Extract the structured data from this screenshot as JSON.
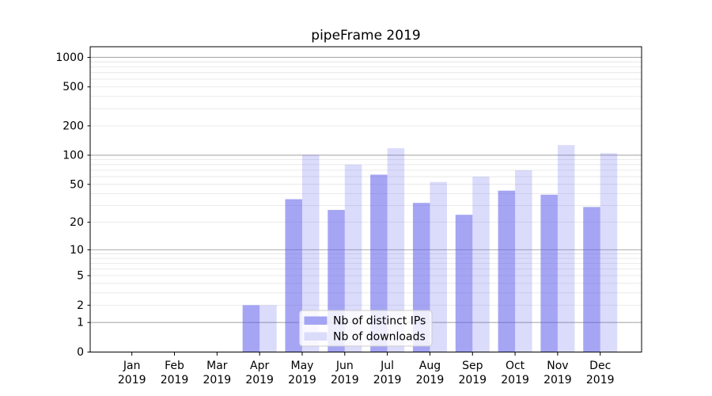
{
  "chart_data": {
    "type": "bar",
    "title": "pipeFrame 2019",
    "x_axis": {
      "months": [
        "Jan",
        "Feb",
        "Mar",
        "Apr",
        "May",
        "Jun",
        "Jul",
        "Aug",
        "Sep",
        "Oct",
        "Nov",
        "Dec"
      ],
      "year": "2019"
    },
    "y_axis": {
      "scale": "log1p",
      "tick_values": [
        0,
        1,
        2,
        5,
        10,
        20,
        50,
        100,
        200,
        500,
        1000
      ],
      "tick_labels": [
        "0",
        "1",
        "2",
        "5",
        "10",
        "20",
        "50",
        "100",
        "200",
        "500",
        "1000"
      ],
      "ylim": [
        0,
        1300
      ],
      "major_gridline_values": [
        1,
        10,
        100,
        1000
      ],
      "minor_gridline_decades": [
        1,
        10,
        100
      ],
      "grid": "on"
    },
    "series": [
      {
        "name": "Nb of distinct IPs",
        "values": [
          0,
          0,
          0,
          2,
          35,
          27,
          63,
          32,
          24,
          43,
          39,
          29
        ],
        "fill": "rgba(91,91,235,0.55)",
        "legend_color": "#a4a4f5"
      },
      {
        "name": "Nb of downloads",
        "values": [
          0,
          0,
          0,
          2,
          101,
          80,
          118,
          53,
          60,
          70,
          127,
          105
        ],
        "fill": "rgba(91,91,235,0.22)",
        "legend_color": "#dbdbfb"
      }
    ],
    "legend": {
      "position": "lower center inside plot",
      "labels": [
        "Nb of distinct IPs",
        "Nb of downloads"
      ]
    },
    "colors": {
      "background": "#ffffff",
      "spine": "#000000",
      "major_grid": "#ababab",
      "minor_grid": "#e8e8e8",
      "legend_border": "#cccccc",
      "legend_background": "rgba(255,255,255,0.8)",
      "text": "#000000"
    }
  }
}
